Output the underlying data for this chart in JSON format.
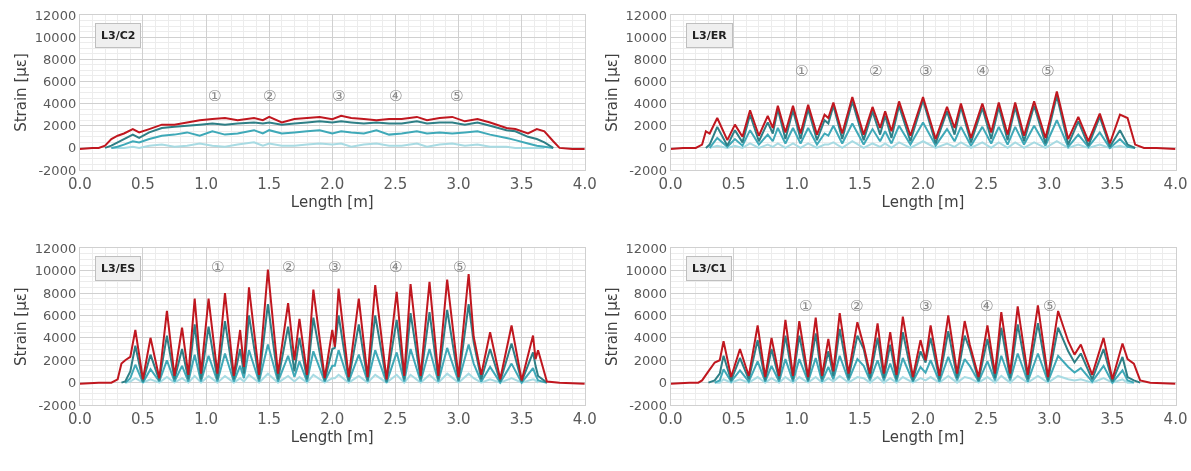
{
  "chart_data": [
    {
      "type": "line",
      "title": "L3/C2",
      "xlabel": "Length [m]",
      "ylabel": "Strain [με]",
      "xlim": [
        0,
        4
      ],
      "ylim": [
        -2000,
        12000
      ],
      "xticks": [
        {
          "value": 0,
          "label": "0.0"
        },
        0.5,
        {
          "value": 1,
          "label": "1.0"
        },
        1.5,
        {
          "value": 2,
          "label": "2.0"
        },
        2.5,
        {
          "value": 3,
          "label": "3.0"
        },
        3.5,
        {
          "value": 4,
          "label": "4.0"
        }
      ],
      "yticks": [
        -2000,
        0,
        2000,
        4000,
        6000,
        8000,
        10000,
        12000
      ],
      "grid": true,
      "marker": "none",
      "line_style": "solid",
      "x": [
        0,
        0.1,
        0.15,
        0.2,
        0.25,
        0.3,
        0.35,
        0.42,
        0.47,
        0.55,
        0.65,
        0.75,
        0.85,
        0.95,
        1.05,
        1.15,
        1.25,
        1.38,
        1.45,
        1.5,
        1.6,
        1.7,
        1.8,
        1.9,
        2.0,
        2.07,
        2.15,
        2.25,
        2.35,
        2.45,
        2.55,
        2.67,
        2.75,
        2.85,
        2.95,
        3.05,
        3.15,
        3.25,
        3.38,
        3.45,
        3.55,
        3.62,
        3.68,
        3.75,
        3.8,
        3.9,
        4.0
      ],
      "series": [
        {
          "color": "#a8dbe3",
          "values": [
            null,
            null,
            null,
            null,
            0,
            0,
            0,
            100,
            0,
            200,
            300,
            100,
            200,
            400,
            200,
            100,
            300,
            500,
            200,
            400,
            200,
            200,
            300,
            400,
            300,
            400,
            100,
            300,
            400,
            200,
            200,
            400,
            100,
            300,
            400,
            200,
            300,
            100,
            100,
            0,
            0,
            0,
            0,
            null,
            null,
            null,
            null
          ]
        },
        {
          "color": "#3fa9b8",
          "values": [
            null,
            null,
            null,
            null,
            0,
            100,
            300,
            600,
            500,
            800,
            1100,
            1200,
            1400,
            1100,
            1500,
            1200,
            1300,
            1600,
            1300,
            1600,
            1300,
            1400,
            1500,
            1600,
            1300,
            1500,
            1400,
            1300,
            1600,
            1200,
            1300,
            1500,
            1300,
            1400,
            1300,
            1400,
            1500,
            1200,
            900,
            700,
            400,
            200,
            100,
            0,
            null,
            null,
            null
          ]
        },
        {
          "color": "#2e7f86",
          "values": [
            null,
            null,
            null,
            0,
            200,
            500,
            800,
            1200,
            900,
            1400,
            1800,
            1900,
            2000,
            2100,
            2200,
            2100,
            2200,
            2300,
            2200,
            2300,
            2100,
            2200,
            2300,
            2400,
            2300,
            2400,
            2300,
            2200,
            2300,
            2200,
            2200,
            2400,
            2200,
            2300,
            2300,
            2100,
            2300,
            2000,
            1600,
            1500,
            1000,
            800,
            500,
            0,
            null,
            null,
            null
          ]
        },
        {
          "color": "#c0171f",
          "values": [
            -100,
            0,
            0,
            200,
            800,
            1100,
            1300,
            1700,
            1400,
            1700,
            2100,
            2100,
            2300,
            2500,
            2600,
            2700,
            2500,
            2700,
            2500,
            2800,
            2300,
            2600,
            2700,
            2800,
            2600,
            2900,
            2700,
            2600,
            2500,
            2600,
            2600,
            2800,
            2500,
            2700,
            2800,
            2400,
            2600,
            2300,
            1800,
            1700,
            1300,
            1700,
            1500,
            600,
            0,
            -100,
            -100
          ]
        }
      ],
      "annotations": [
        "①",
        "②",
        "③",
        "④",
        "⑤"
      ]
    },
    {
      "type": "line",
      "title": "L3/ER",
      "xlabel": "Length [m]",
      "ylabel": "Strain [με]",
      "xlim": [
        0,
        4
      ],
      "ylim": [
        -2000,
        12000
      ],
      "xticks": [
        {
          "value": 0,
          "label": "0.0"
        },
        0.5,
        {
          "value": 1,
          "label": "1.0"
        },
        1.5,
        {
          "value": 2,
          "label": "2.0"
        },
        2.5,
        {
          "value": 3,
          "label": "3.0"
        },
        3.5,
        {
          "value": 4,
          "label": "4.0"
        }
      ],
      "yticks": [
        -2000,
        0,
        2000,
        4000,
        6000,
        8000,
        10000,
        12000
      ],
      "grid": true,
      "marker": "none",
      "line_style": "solid",
      "x": [
        0,
        0.1,
        0.2,
        0.25,
        0.28,
        0.31,
        0.37,
        0.45,
        0.51,
        0.57,
        0.63,
        0.7,
        0.77,
        0.81,
        0.85,
        0.91,
        0.97,
        1.03,
        1.09,
        1.16,
        1.22,
        1.25,
        1.29,
        1.36,
        1.44,
        1.53,
        1.6,
        1.66,
        1.7,
        1.75,
        1.81,
        1.9,
        2.0,
        2.1,
        2.19,
        2.25,
        2.3,
        2.38,
        2.47,
        2.54,
        2.6,
        2.67,
        2.73,
        2.8,
        2.88,
        2.97,
        3.06,
        3.15,
        3.23,
        3.31,
        3.4,
        3.48,
        3.56,
        3.62,
        3.68,
        3.75,
        3.85,
        4.0
      ],
      "series": [
        {
          "color": "#a8dbe3",
          "values": [
            null,
            null,
            null,
            null,
            null,
            0,
            200,
            0,
            200,
            0,
            400,
            0,
            300,
            100,
            400,
            0,
            400,
            0,
            400,
            0,
            300,
            300,
            500,
            0,
            600,
            0,
            400,
            100,
            400,
            0,
            500,
            0,
            600,
            0,
            400,
            100,
            500,
            0,
            500,
            0,
            500,
            0,
            500,
            0,
            500,
            0,
            600,
            0,
            300,
            0,
            300,
            0,
            200,
            0,
            null,
            null,
            null,
            null
          ]
        },
        {
          "color": "#3fa9b8",
          "values": [
            null,
            null,
            null,
            null,
            null,
            0,
            900,
            100,
            800,
            200,
            1600,
            300,
            1200,
            600,
            1800,
            400,
            1800,
            400,
            1800,
            300,
            1300,
            1100,
            2000,
            400,
            2200,
            300,
            1700,
            600,
            1500,
            400,
            2000,
            300,
            2300,
            200,
            1700,
            600,
            1900,
            200,
            1900,
            400,
            1900,
            300,
            1900,
            300,
            2000,
            200,
            2500,
            100,
            1200,
            100,
            1400,
            0,
            800,
            100,
            0,
            null,
            null,
            null
          ]
        },
        {
          "color": "#2e7f86",
          "values": [
            null,
            null,
            null,
            null,
            0,
            300,
            1900,
            200,
            1600,
            500,
            3000,
            600,
            2300,
            1300,
            3500,
            800,
            3400,
            800,
            3500,
            700,
            2500,
            2200,
            3800,
            800,
            4200,
            700,
            3300,
            1200,
            2900,
            900,
            3800,
            600,
            4300,
            400,
            3300,
            1200,
            3700,
            500,
            3600,
            800,
            3700,
            700,
            3700,
            600,
            3800,
            400,
            4700,
            300,
            2400,
            200,
            2800,
            100,
            1600,
            300,
            0,
            null,
            null,
            null
          ]
        },
        {
          "color": "#c0171f",
          "values": [
            -100,
            0,
            0,
            300,
            1500,
            1300,
            2700,
            700,
            2100,
            1000,
            3400,
            1100,
            2900,
            1800,
            3800,
            1400,
            3800,
            1300,
            3900,
            1200,
            3000,
            2700,
            4100,
            1300,
            4600,
            1200,
            3700,
            1800,
            3300,
            1500,
            4200,
            1100,
            4600,
            800,
            3700,
            1800,
            4000,
            900,
            4000,
            1400,
            4100,
            1200,
            4100,
            1100,
            4200,
            900,
            5100,
            800,
            2800,
            600,
            3100,
            400,
            3000,
            2700,
            300,
            0,
            0,
            -100
          ]
        }
      ],
      "annotations": [
        "①",
        "②",
        "③",
        "④",
        "⑤"
      ]
    },
    {
      "type": "line",
      "title": "L3/ES",
      "xlabel": "Length [m]",
      "ylabel": "Strain [με]",
      "xlim": [
        0,
        4
      ],
      "ylim": [
        -2000,
        12000
      ],
      "xticks": [
        {
          "value": 0,
          "label": "0.0"
        },
        0.5,
        {
          "value": 1,
          "label": "1.0"
        },
        1.5,
        {
          "value": 2,
          "label": "2.0"
        },
        2.5,
        {
          "value": 3,
          "label": "3.0"
        },
        3.5,
        {
          "value": 4,
          "label": "4.0"
        }
      ],
      "yticks": [
        -2000,
        0,
        2000,
        4000,
        6000,
        8000,
        10000,
        12000
      ],
      "grid": true,
      "marker": "none",
      "line_style": "solid",
      "x": [
        0,
        0.15,
        0.25,
        0.3,
        0.33,
        0.36,
        0.4,
        0.44,
        0.5,
        0.56,
        0.63,
        0.69,
        0.75,
        0.81,
        0.86,
        0.91,
        0.96,
        1.02,
        1.09,
        1.15,
        1.22,
        1.27,
        1.3,
        1.34,
        1.42,
        1.49,
        1.57,
        1.65,
        1.7,
        1.74,
        1.8,
        1.85,
        1.94,
        2.0,
        2.02,
        2.05,
        2.13,
        2.21,
        2.28,
        2.34,
        2.43,
        2.51,
        2.57,
        2.62,
        2.7,
        2.77,
        2.84,
        2.91,
        3.0,
        3.08,
        3.12,
        3.18,
        3.25,
        3.33,
        3.42,
        3.5,
        3.59,
        3.61,
        3.63,
        3.7,
        3.8,
        4.0
      ],
      "series": [
        {
          "color": "#a8dbe3",
          "values": [
            null,
            null,
            null,
            null,
            null,
            0,
            100,
            400,
            0,
            300,
            0,
            500,
            0,
            400,
            0,
            600,
            0,
            600,
            0,
            600,
            0,
            400,
            100,
            700,
            0,
            800,
            0,
            600,
            100,
            500,
            0,
            700,
            0,
            400,
            400,
            700,
            0,
            600,
            0,
            700,
            0,
            700,
            0,
            700,
            0,
            700,
            0,
            800,
            0,
            800,
            400,
            0,
            300,
            0,
            400,
            0,
            300,
            200,
            0,
            null,
            null,
            null
          ]
        },
        {
          "color": "#3fa9b8",
          "values": [
            null,
            null,
            null,
            null,
            null,
            0,
            400,
            1600,
            0,
            1200,
            100,
            2000,
            100,
            1500,
            100,
            2500,
            100,
            2400,
            100,
            2600,
            100,
            1500,
            400,
            2900,
            100,
            3400,
            100,
            2400,
            500,
            1900,
            100,
            2800,
            100,
            1500,
            1500,
            2900,
            100,
            2500,
            100,
            2900,
            0,
            2700,
            100,
            3000,
            100,
            3000,
            100,
            3100,
            100,
            3400,
            1700,
            100,
            1400,
            0,
            1700,
            0,
            1300,
            700,
            200,
            0,
            null,
            null
          ]
        },
        {
          "color": "#2e7f86",
          "values": [
            null,
            null,
            null,
            null,
            0,
            100,
            1000,
            3300,
            100,
            2500,
            200,
            4200,
            300,
            3000,
            300,
            5200,
            300,
            5000,
            300,
            5500,
            300,
            3000,
            800,
            6000,
            300,
            7000,
            300,
            5000,
            1000,
            4000,
            300,
            5800,
            200,
            3000,
            3100,
            6000,
            200,
            5200,
            200,
            6000,
            100,
            5600,
            300,
            6200,
            300,
            6300,
            300,
            6500,
            200,
            7000,
            3600,
            300,
            3000,
            100,
            3500,
            100,
            2700,
            1500,
            600,
            0,
            null,
            null
          ]
        },
        {
          "color": "#c0171f",
          "values": [
            -100,
            0,
            0,
            300,
            1700,
            2000,
            2300,
            4700,
            300,
            4000,
            400,
            6400,
            600,
            4900,
            700,
            7500,
            800,
            7500,
            800,
            8000,
            600,
            4700,
            1400,
            8500,
            700,
            10100,
            800,
            7100,
            2000,
            5700,
            700,
            8300,
            400,
            4700,
            3200,
            8400,
            500,
            7500,
            500,
            8700,
            300,
            8100,
            600,
            8800,
            600,
            9000,
            600,
            9200,
            500,
            9700,
            4100,
            700,
            4500,
            300,
            5100,
            200,
            4200,
            2100,
            2900,
            100,
            0,
            -100
          ]
        }
      ],
      "annotations": [
        "①",
        "②",
        "③",
        "④",
        "⑤"
      ]
    },
    {
      "type": "line",
      "title": "L3/C1",
      "xlabel": "Length [m]",
      "ylabel": "Strain [με]",
      "xlim": [
        0,
        4
      ],
      "ylim": [
        -2000,
        12000
      ],
      "xticks": [
        {
          "value": 0,
          "label": "0.0"
        },
        0.5,
        {
          "value": 1,
          "label": "1.0"
        },
        1.5,
        {
          "value": 2,
          "label": "2.0"
        },
        2.5,
        {
          "value": 3,
          "label": "3.0"
        },
        3.5,
        {
          "value": 4,
          "label": "4.0"
        }
      ],
      "yticks": [
        -2000,
        0,
        2000,
        4000,
        6000,
        8000,
        10000,
        12000
      ],
      "grid": true,
      "marker": "none",
      "line_style": "solid",
      "x": [
        0,
        0.15,
        0.22,
        0.25,
        0.3,
        0.35,
        0.39,
        0.42,
        0.48,
        0.55,
        0.62,
        0.69,
        0.75,
        0.8,
        0.86,
        0.91,
        0.97,
        1.02,
        1.09,
        1.15,
        1.2,
        1.25,
        1.29,
        1.34,
        1.41,
        1.48,
        1.53,
        1.58,
        1.64,
        1.69,
        1.74,
        1.79,
        1.84,
        1.92,
        1.98,
        2.02,
        2.06,
        2.13,
        2.2,
        2.27,
        2.33,
        2.37,
        2.44,
        2.51,
        2.57,
        2.62,
        2.69,
        2.75,
        2.83,
        2.91,
        2.99,
        3.07,
        3.15,
        3.2,
        3.25,
        3.34,
        3.43,
        3.5,
        3.58,
        3.62,
        3.67,
        3.72,
        3.8,
        4.0
      ],
      "series": [
        {
          "color": "#a8dbe3",
          "values": [
            null,
            null,
            null,
            null,
            null,
            0,
            0,
            300,
            0,
            300,
            0,
            500,
            0,
            400,
            0,
            500,
            0,
            500,
            0,
            500,
            0,
            400,
            100,
            600,
            0,
            500,
            400,
            0,
            500,
            0,
            400,
            0,
            500,
            0,
            400,
            200,
            500,
            0,
            600,
            0,
            500,
            400,
            0,
            500,
            0,
            600,
            0,
            600,
            0,
            600,
            0,
            600,
            300,
            200,
            300,
            0,
            400,
            0,
            300,
            0,
            0,
            null,
            null,
            null
          ]
        },
        {
          "color": "#3fa9b8",
          "values": [
            null,
            null,
            null,
            null,
            null,
            0,
            200,
            1200,
            100,
            1100,
            100,
            1900,
            100,
            1500,
            100,
            2100,
            100,
            2100,
            100,
            2200,
            100,
            1400,
            300,
            2400,
            200,
            2100,
            1500,
            200,
            2000,
            200,
            1700,
            100,
            2200,
            100,
            1400,
            900,
            2000,
            100,
            2300,
            200,
            2100,
            1500,
            100,
            1900,
            200,
            2400,
            200,
            2600,
            100,
            2600,
            100,
            2400,
            1400,
            900,
            1300,
            100,
            1500,
            0,
            1100,
            200,
            0,
            null,
            null,
            null
          ]
        },
        {
          "color": "#2e7f86",
          "values": [
            null,
            null,
            null,
            null,
            0,
            200,
            800,
            2400,
            200,
            2200,
            300,
            3800,
            200,
            3000,
            300,
            4200,
            300,
            4200,
            200,
            4400,
            300,
            2800,
            600,
            4800,
            400,
            4200,
            3000,
            400,
            4000,
            400,
            3400,
            300,
            4500,
            200,
            2800,
            1800,
            4000,
            300,
            4600,
            400,
            4200,
            3000,
            200,
            3900,
            400,
            4900,
            400,
            5200,
            300,
            5300,
            200,
            4900,
            2800,
            1800,
            2600,
            300,
            3000,
            100,
            2300,
            500,
            200,
            0,
            null,
            null
          ]
        },
        {
          "color": "#c0171f",
          "values": [
            -100,
            0,
            0,
            200,
            1000,
            1800,
            2000,
            3700,
            500,
            3000,
            600,
            5100,
            500,
            4000,
            600,
            5600,
            600,
            5500,
            500,
            5800,
            600,
            3900,
            1000,
            6200,
            800,
            5400,
            3300,
            800,
            5300,
            800,
            4500,
            700,
            5900,
            500,
            3800,
            2000,
            5100,
            600,
            6000,
            800,
            5500,
            3400,
            500,
            5100,
            800,
            6300,
            800,
            6800,
            700,
            6900,
            500,
            6400,
            3700,
            2500,
            3400,
            700,
            4000,
            300,
            3500,
            2100,
            1700,
            200,
            0,
            -100
          ]
        }
      ],
      "annotations": [
        "①",
        "②",
        "③",
        "④",
        "⑤"
      ]
    }
  ]
}
